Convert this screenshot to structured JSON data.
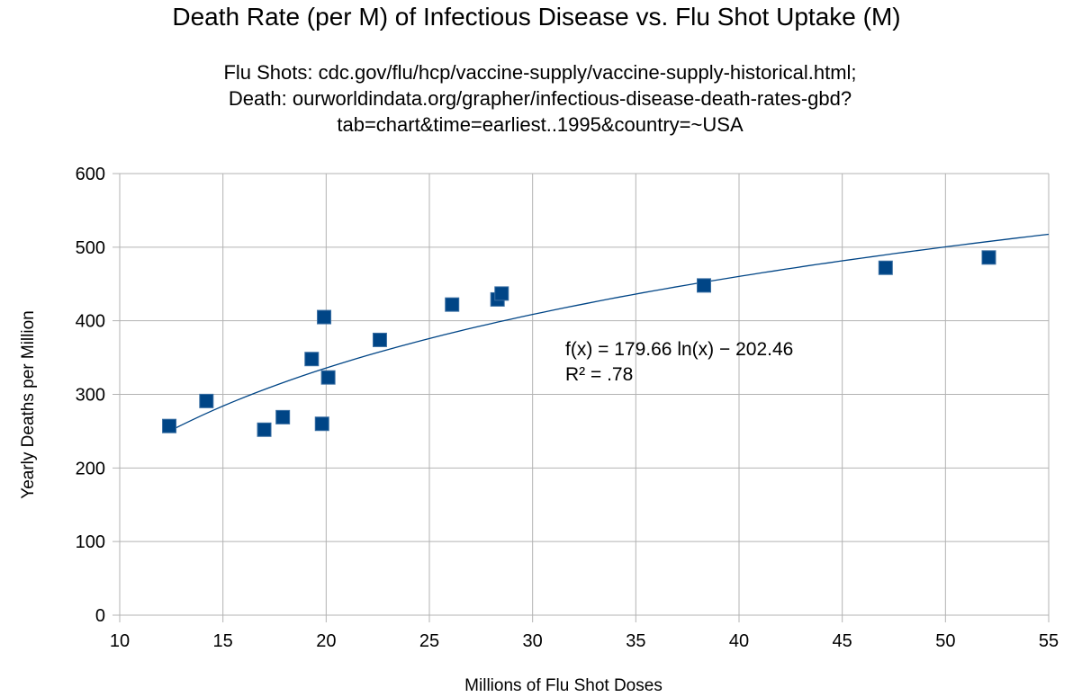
{
  "chart_data": {
    "type": "scatter",
    "title": "Death Rate (per M) of Infectious Disease vs. Flu Shot Uptake (M)",
    "subtitle_lines": [
      "Flu Shots: cdc.gov/flu/hcp/vaccine-supply/vaccine-supply-historical.html;",
      "Death: ourworldindata.org/grapher/infectious-disease-death-rates-gbd?",
      "tab=chart&time=earliest..1995&country=~USA"
    ],
    "xlabel": "Millions of Flu Shot Doses",
    "ylabel": "Yearly Deaths per Million",
    "xlim": [
      10,
      55
    ],
    "ylim": [
      0,
      600
    ],
    "xticks": [
      10,
      15,
      20,
      25,
      30,
      35,
      40,
      45,
      50,
      55
    ],
    "yticks": [
      0,
      100,
      200,
      300,
      400,
      500,
      600
    ],
    "grid": true,
    "marker_color": "#004586",
    "trend_color": "#004586",
    "points": [
      {
        "x": 12.4,
        "y": 257
      },
      {
        "x": 14.2,
        "y": 291
      },
      {
        "x": 17.0,
        "y": 252
      },
      {
        "x": 17.9,
        "y": 269
      },
      {
        "x": 19.3,
        "y": 348
      },
      {
        "x": 19.8,
        "y": 260
      },
      {
        "x": 19.9,
        "y": 405
      },
      {
        "x": 20.1,
        "y": 323
      },
      {
        "x": 22.6,
        "y": 374
      },
      {
        "x": 26.1,
        "y": 422
      },
      {
        "x": 28.3,
        "y": 429
      },
      {
        "x": 28.5,
        "y": 437
      },
      {
        "x": 38.3,
        "y": 448
      },
      {
        "x": 47.1,
        "y": 472
      },
      {
        "x": 52.1,
        "y": 486
      }
    ],
    "trendline": {
      "type": "logarithmic",
      "a": 179.66,
      "b": -202.46,
      "x_range": [
        12.4,
        55
      ],
      "equation_label": "f(x) = 179.66 ln(x) − 202.46",
      "r2_label": "R² = .78"
    }
  }
}
